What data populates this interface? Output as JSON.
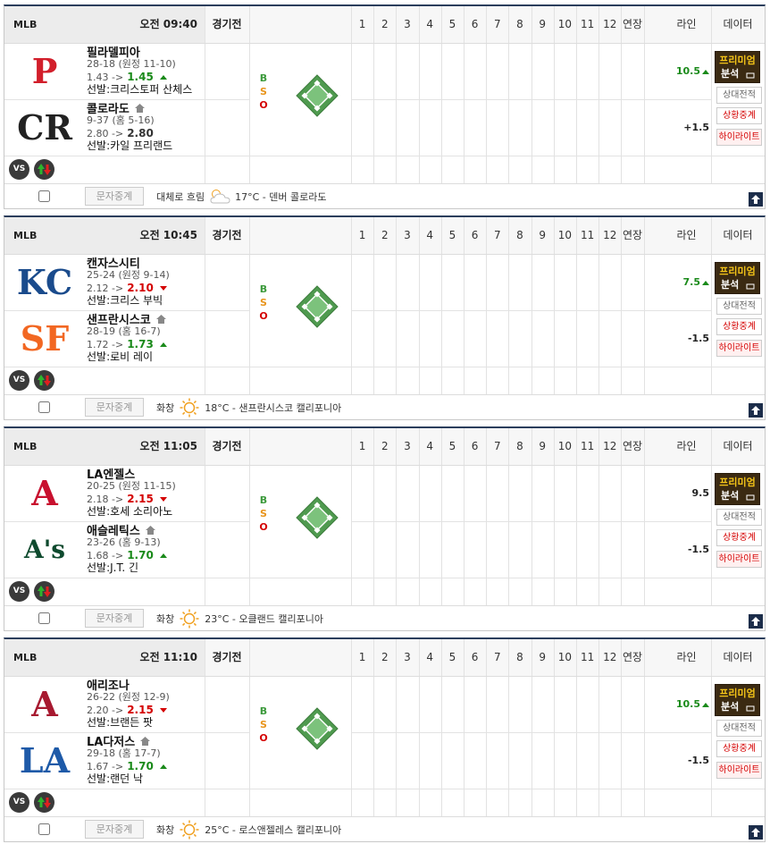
{
  "labels": {
    "league": "MLB",
    "status": "경기전",
    "innings": [
      "1",
      "2",
      "3",
      "4",
      "5",
      "6",
      "7",
      "8",
      "9",
      "10",
      "11",
      "12",
      "연장"
    ],
    "line": "라인",
    "data": "데이터",
    "bso": [
      "B",
      "S",
      "O"
    ],
    "premium": "프리미엄",
    "analysis": "분석",
    "h2h": "상대전적",
    "live": "상황중계",
    "highlight": "하이라이트",
    "text_cast": "문자중계",
    "vs": "VS"
  },
  "games": [
    {
      "time": "오전 09:40",
      "weather": "대체로 흐림",
      "weather_icon": "cloud",
      "info": "17°C - 덴버 콜로라도",
      "teams": [
        {
          "name": "필라델피아",
          "logo": "P",
          "logo_color": "#d21f2b",
          "home": false,
          "record": "28-18 (원정 11-10)",
          "odds_from": "1.43 ->",
          "odds_to": "1.45",
          "trend": "up",
          "pitcher": "선발:크리스토퍼 산체스",
          "line": "10.5",
          "line_trend": "up"
        },
        {
          "name": "콜로라도",
          "logo": "CR",
          "logo_color": "#222222",
          "home": true,
          "record": "9-37 (홈 5-16)",
          "odds_from": "2.80 ->",
          "odds_to": "2.80",
          "trend": "none",
          "pitcher": "선발:카일 프리랜드",
          "line": "+1.5",
          "line_trend": "none"
        }
      ]
    },
    {
      "time": "오전 10:45",
      "weather": "화창",
      "weather_icon": "sun",
      "info": "18°C - 샌프란시스코 캘리포니아",
      "teams": [
        {
          "name": "캔자스시티",
          "logo": "KC",
          "logo_color": "#1a4b8c",
          "home": false,
          "record": "25-24 (원정 9-14)",
          "odds_from": "2.12 ->",
          "odds_to": "2.10",
          "trend": "down",
          "pitcher": "선발:크리스 부빅",
          "line": "7.5",
          "line_trend": "up"
        },
        {
          "name": "샌프란시스코",
          "logo": "SF",
          "logo_color": "#f26722",
          "home": true,
          "record": "28-19 (홈 16-7)",
          "odds_from": "1.72 ->",
          "odds_to": "1.73",
          "trend": "up",
          "pitcher": "선발:로비 레이",
          "line": "-1.5",
          "line_trend": "none"
        }
      ]
    },
    {
      "time": "오전 11:05",
      "weather": "화창",
      "weather_icon": "sun",
      "info": "23°C - 오클랜드 캘리포니아",
      "teams": [
        {
          "name": "LA엔젤스",
          "logo": "A",
          "logo_color": "#c8102e",
          "home": false,
          "record": "20-25 (원정 11-15)",
          "odds_from": "2.18 ->",
          "odds_to": "2.15",
          "trend": "down",
          "pitcher": "선발:호세 소리아노",
          "line": "9.5",
          "line_trend": "none"
        },
        {
          "name": "애슬레틱스",
          "logo": "A's",
          "logo_color": "#0e4a2e",
          "home": true,
          "record": "23-26 (홈 9-13)",
          "odds_from": "1.68 ->",
          "odds_to": "1.70",
          "trend": "up",
          "pitcher": "선발:J.T. 긴",
          "line": "-1.5",
          "line_trend": "none"
        }
      ]
    },
    {
      "time": "오전 11:10",
      "weather": "화창",
      "weather_icon": "sun",
      "info": "25°C - 로스앤젤레스 캘리포니아",
      "teams": [
        {
          "name": "애리조나",
          "logo": "A",
          "logo_color": "#a71930",
          "home": false,
          "record": "26-22 (원정 12-9)",
          "odds_from": "2.20 ->",
          "odds_to": "2.15",
          "trend": "down",
          "pitcher": "선발:브랜든 팟",
          "line": "10.5",
          "line_trend": "up"
        },
        {
          "name": "LA다저스",
          "logo": "LA",
          "logo_color": "#1e5aa8",
          "home": true,
          "record": "29-18 (홈 17-7)",
          "odds_from": "1.67 ->",
          "odds_to": "1.70",
          "trend": "up",
          "pitcher": "선발:랜던 낙",
          "line": "-1.5",
          "line_trend": "none"
        }
      ]
    }
  ]
}
